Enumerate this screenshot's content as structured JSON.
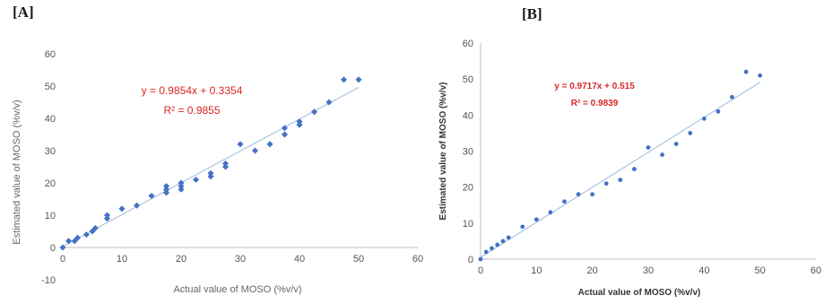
{
  "panels": [
    {
      "label": "[A]"
    },
    {
      "label": "[B]"
    }
  ],
  "chart_data": [
    {
      "type": "scatter",
      "xlabel": "Actual value of MOSO (%v/v)",
      "ylabel": "Estimated value of MOSO (%v/v)",
      "xlim": [
        0,
        60
      ],
      "ylim": [
        -10,
        60
      ],
      "xticks": [
        "0",
        "10",
        "20",
        "30",
        "40",
        "50",
        "60"
      ],
      "yticks": [
        "-10",
        "0",
        "10",
        "20",
        "30",
        "40",
        "50",
        "60"
      ],
      "equation": "y = 0.9854x + 0.3354",
      "r2": "R² = 0.9855",
      "trendline": {
        "slope": 0.9854,
        "intercept": 0.3354,
        "x_range": [
          0,
          50
        ]
      },
      "marker_color": "#4472c4",
      "trend_color": "#a9c4e4",
      "annotation_color": "#d62728",
      "x": [
        0,
        1,
        2,
        2.5,
        4,
        5,
        5.5,
        7.5,
        7.5,
        10,
        12.5,
        15,
        17.5,
        17.5,
        17.5,
        20,
        20,
        20,
        22.5,
        25,
        25,
        27.5,
        27.5,
        30,
        32.5,
        35,
        37.5,
        37.5,
        40,
        40,
        42.5,
        45,
        47.5,
        50
      ],
      "y": [
        0,
        2,
        2,
        3,
        4,
        5,
        6,
        9,
        10,
        12,
        13,
        16,
        17,
        18,
        19,
        18,
        19,
        20,
        21,
        22,
        23,
        25,
        26,
        32,
        30,
        32,
        35,
        37,
        38,
        39,
        42,
        45,
        52,
        52
      ]
    },
    {
      "type": "scatter",
      "xlabel": "Actual value of MOSO (%v/v)",
      "ylabel": "Estimated value of MOSO (%v/v)",
      "xlim": [
        0,
        60
      ],
      "ylim": [
        0,
        60
      ],
      "xticks": [
        "0",
        "10",
        "20",
        "30",
        "40",
        "50",
        "60"
      ],
      "yticks": [
        "0",
        "10",
        "20",
        "30",
        "40",
        "50",
        "60"
      ],
      "equation": "y = 0.9717x + 0.515",
      "r2": "R² = 0.9839",
      "trendline": {
        "slope": 0.9717,
        "intercept": 0.515,
        "x_range": [
          0,
          50
        ]
      },
      "marker_color": "#4472c4",
      "trend_color": "#a9c4e4",
      "annotation_color": "#d62728",
      "x": [
        0,
        1,
        2,
        3,
        4,
        5,
        7.5,
        10,
        12.5,
        15,
        17.5,
        20,
        22.5,
        25,
        27.5,
        30,
        32.5,
        35,
        37.5,
        40,
        42.5,
        45,
        47.5,
        50
      ],
      "y": [
        0,
        2,
        3,
        4,
        5,
        6,
        9,
        11,
        13,
        16,
        18,
        18,
        21,
        22,
        25,
        31,
        29,
        32,
        35,
        39,
        41,
        45,
        52,
        51
      ]
    }
  ]
}
